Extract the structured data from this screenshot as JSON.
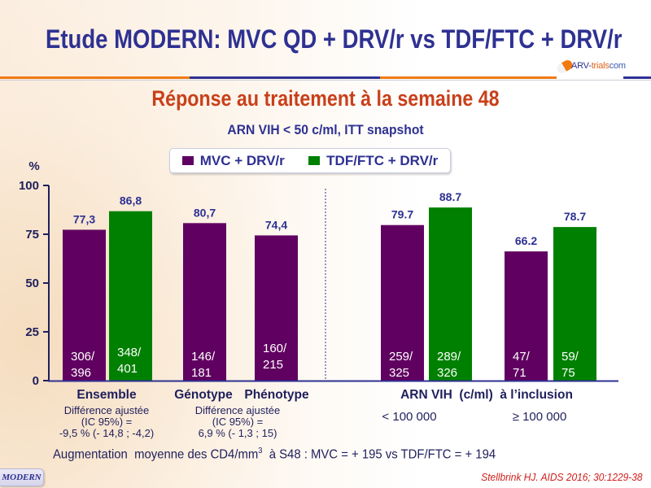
{
  "header": {
    "title": "Etude MODERN: MVC QD + DRV/r vs TDF/FTC + DRV/r",
    "logo": {
      "part1": "ARV-",
      "part2": "trials",
      "part3": "com"
    },
    "rule_colors": [
      "#f07a12",
      "#2e3192",
      "#f07a12",
      "#2e3192"
    ]
  },
  "subtitle": "Réponse au traitement à la semaine 48",
  "chart_data": {
    "type": "bar",
    "title": "ARN VIH < 50 c/ml, ITT snapshot",
    "xlabel": "",
    "ylabel": "%",
    "ylim": [
      0,
      100
    ],
    "yticks": [
      0,
      25,
      50,
      75,
      100
    ],
    "grid": false,
    "legend": {
      "position": "top-center",
      "entries": [
        {
          "label": "MVC + DRV/r",
          "color": "#600060"
        },
        {
          "label": "TDF/FTC + DRV/r",
          "color": "#008000"
        }
      ]
    },
    "categories": [
      "Ensemble",
      "Génotype",
      "Phénotype",
      "< 100 000",
      "≥ 100 000"
    ],
    "series": [
      {
        "name": "MVC + DRV/r",
        "color": "#600060",
        "values": [
          77.3,
          80.7,
          74.4,
          79.7,
          66.2
        ],
        "value_labels": [
          "77,3",
          "80,7",
          "74,4",
          "79.7",
          "66.2"
        ],
        "counts": [
          "306/396",
          "146/181",
          "160/215",
          "259/325",
          "47/71"
        ]
      },
      {
        "name": "TDF/FTC + DRV/r",
        "color": "#008000",
        "values": [
          86.8,
          null,
          null,
          88.7,
          78.7
        ],
        "value_labels": [
          "86,8",
          null,
          null,
          "88.7",
          "78.7"
        ],
        "counts": [
          "348/401",
          null,
          null,
          "289/326",
          "59/75"
        ]
      }
    ],
    "group_labels": {
      "ensemble": "Ensemble",
      "genotype": "Génotype",
      "phenotype": "Phénotype",
      "baseline_rna": "ARN VIH  (c/ml)  à l’inclusion",
      "low": "< 100 000",
      "high": "≥ 100 000"
    },
    "annotations": {
      "ensemble_diff": [
        "Différence ajustée",
        "(IC 95%) =",
        "-9,5 % (- 14,8 ; -4,2)"
      ],
      "geno_pheno_diff": [
        "Différence ajustée",
        "(IC 95%) =",
        "6,9 % (- 1,3 ; 15)"
      ]
    }
  },
  "footer": {
    "cd4_text_before": "Augmentation  moyenne des CD4/mm",
    "cd4_sup": "3",
    "cd4_text_after": "  à S48 : MVC = + 195 vs TDF/FTC = + 194",
    "badge": "MODERN",
    "citation": "Stellbrink HJ. AIDS 2016; 30:1229-38"
  }
}
